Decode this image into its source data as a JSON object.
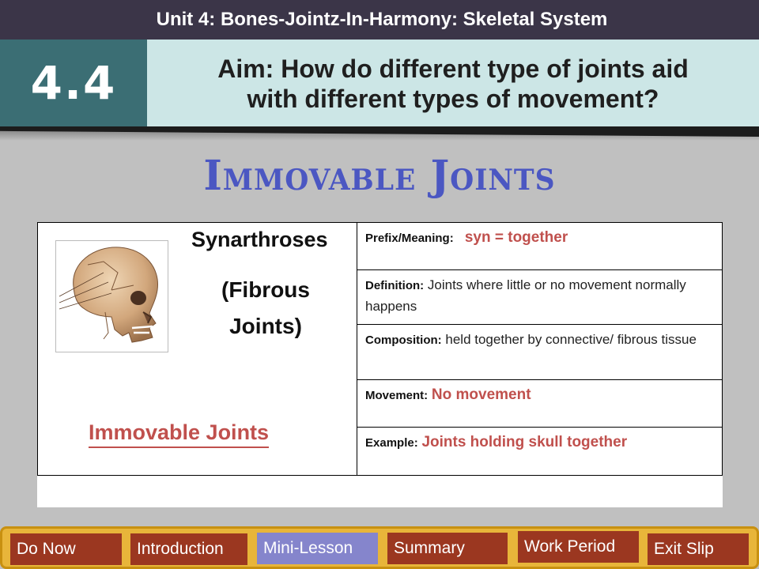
{
  "header": {
    "unit_title": "Unit 4: Bones-Jointz-In-Harmony: Skeletal System",
    "lesson_number": "4.4",
    "aim_line1": "Aim: How do different type of joints aid",
    "aim_line2": "with different types of movement?"
  },
  "slide": {
    "heading": "Immovable Joints",
    "image_subject": "skull-icon",
    "title": "Synarthroses",
    "subtitle_line1": "(Fibrous",
    "subtitle_line2": "Joints)",
    "link_label": "Immovable Joints",
    "table": {
      "prefix_label": "Prefix/Meaning:",
      "prefix_value": "syn = together",
      "definition_label": "Definition:",
      "definition_value": "Joints where little or no movement normally happens",
      "composition_label": "Composition:",
      "composition_value": "held together by connective/ fibrous tissue",
      "movement_label": "Movement:",
      "movement_value": "No movement",
      "example_label": "Example:",
      "example_value": "Joints holding skull together"
    }
  },
  "nav": {
    "items": [
      {
        "label": "Do Now"
      },
      {
        "label": "Introduction"
      },
      {
        "label": "Mini-Lesson",
        "active": true
      },
      {
        "label": "Summary"
      },
      {
        "label": "Work Period"
      },
      {
        "label": "Exit Slip"
      }
    ]
  },
  "colors": {
    "top_bar": "#3b3548",
    "lesson_box": "#3b6e74",
    "aim_box": "#cce6e6",
    "heading": "#4b57c2",
    "accent_red": "#c0504d",
    "nav_bar": "#e8b53a",
    "nav_button": "#9b3720",
    "nav_active": "#8585cc"
  }
}
